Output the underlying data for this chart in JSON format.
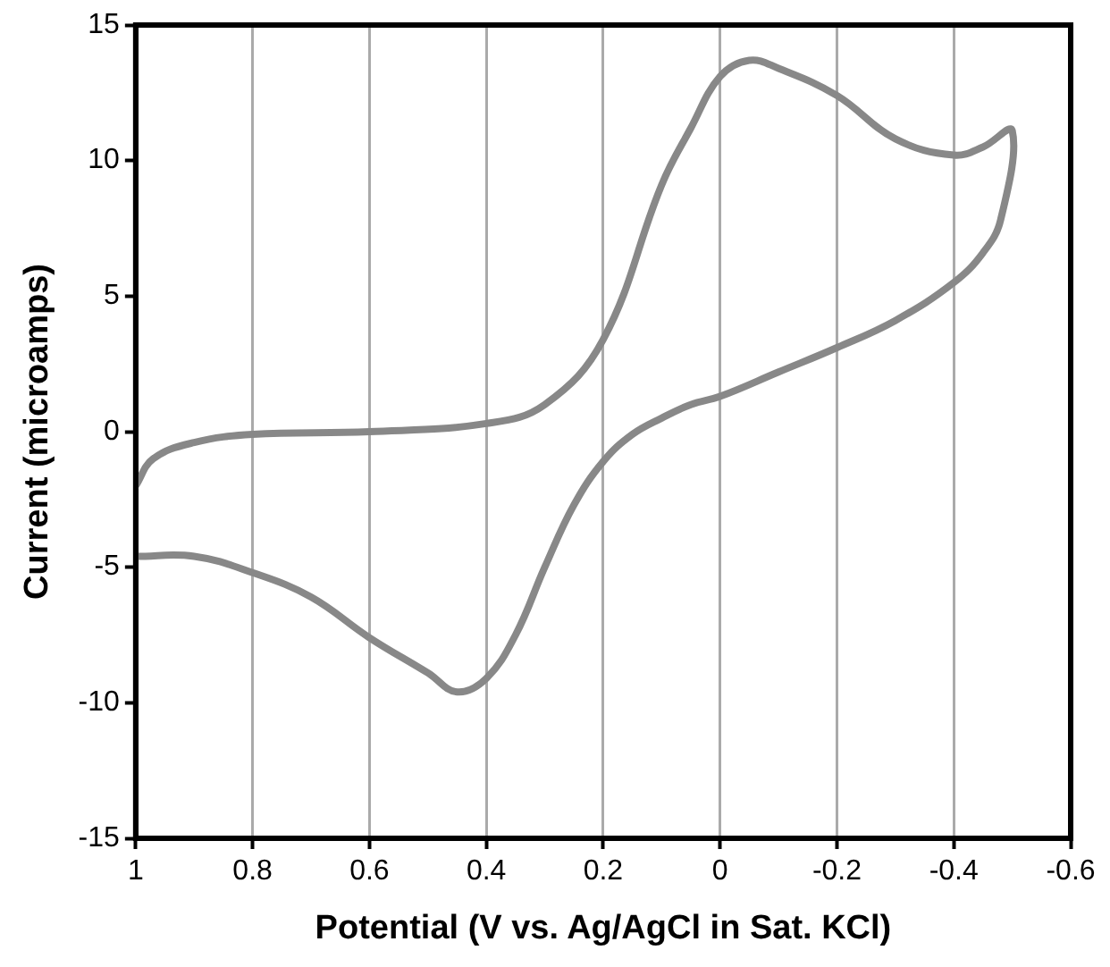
{
  "chart_data": {
    "type": "line",
    "xlabel": "Potential (V vs. Ag/AgCl in Sat. KCl)",
    "ylabel": "Current (microamps)",
    "xlim": [
      1,
      -0.6
    ],
    "xticks": [
      1,
      0.8,
      0.6,
      0.4,
      0.2,
      0,
      -0.2,
      -0.4,
      -0.6
    ],
    "ylim": [
      -15,
      15
    ],
    "yticks": [
      -15,
      -10,
      -5,
      0,
      5,
      10,
      15
    ],
    "grid": "x",
    "legend": false,
    "marker": "none",
    "line_style": "solid",
    "series": [
      {
        "color": "#888888",
        "x": [
          1,
          0.97,
          0.9,
          0.8,
          0.6,
          0.4,
          0.3,
          0.2,
          0.1,
          0.05,
          0,
          -0.05,
          -0.1,
          -0.2,
          -0.3,
          -0.4,
          -0.45,
          -0.5,
          -0.48,
          -0.45,
          -0.4,
          -0.3,
          -0.2,
          -0.1,
          0,
          0.05,
          0.1,
          0.15,
          0.2,
          0.25,
          0.3,
          0.35,
          0.4,
          0.45,
          0.5,
          0.6,
          0.7,
          0.8,
          0.9,
          1
        ],
        "values": [
          -2.0,
          -1.0,
          -0.4,
          -0.1,
          0.0,
          0.3,
          1.0,
          3.4,
          9.1,
          11.2,
          13.1,
          13.7,
          13.4,
          12.4,
          10.8,
          10.2,
          10.5,
          11.1,
          7.8,
          6.6,
          5.5,
          4.1,
          3.1,
          2.2,
          1.3,
          1.0,
          0.5,
          -0.1,
          -1.1,
          -2.7,
          -5.0,
          -7.5,
          -9.1,
          -9.6,
          -8.9,
          -7.6,
          -6.1,
          -5.2,
          -4.6,
          -4.6
        ]
      }
    ]
  }
}
